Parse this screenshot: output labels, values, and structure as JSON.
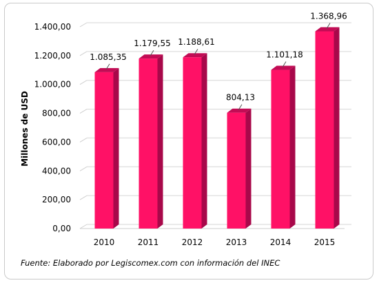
{
  "chart_data": {
    "type": "bar",
    "categories": [
      "2010",
      "2011",
      "2012",
      "2013",
      "2014",
      "2015"
    ],
    "values": [
      1085.35,
      1179.55,
      1188.61,
      804.13,
      1101.18,
      1368.96
    ],
    "value_labels": [
      "1.085,35",
      "1.179,55",
      "1.188,61",
      "804,13",
      "1.101,18",
      "1.368,96"
    ],
    "ylabel": "Millones de USD",
    "xlabel": "",
    "ylim": [
      0,
      1400
    ],
    "yticks": [
      0,
      200,
      400,
      600,
      800,
      1000,
      1200,
      1400
    ],
    "ytick_labels": [
      "0,00",
      "200,00",
      "400,00",
      "600,00",
      "800,00",
      "1.000,00",
      "1.200,00",
      "1.400,00"
    ],
    "grid": true,
    "bar_color": "#ff1166",
    "bar_side_color": "#a8084a",
    "bar_top_color": "#c20c55"
  },
  "source_note": "Fuente: Elaborado por Legiscomex.com con información del INEC"
}
